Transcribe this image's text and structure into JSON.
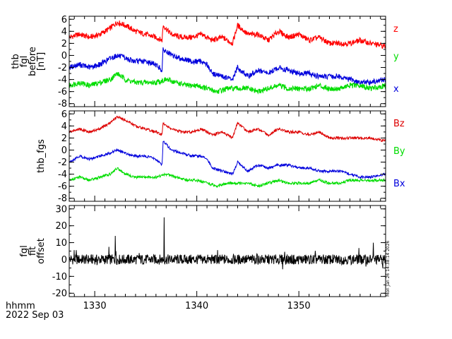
{
  "chart_data": [
    {
      "type": "line",
      "ylabel_lines": [
        "thb",
        "fgl",
        "before",
        "[nT]"
      ],
      "ylim": [
        -8.5,
        6.5
      ],
      "yticks": [
        -8,
        -6,
        -4,
        -2,
        0,
        2,
        4,
        6
      ],
      "xlim": [
        1327.5,
        1358.5
      ],
      "xticks": [
        1330,
        1340,
        1350
      ],
      "xtick_labels": [
        "1330",
        "1340",
        "1350"
      ],
      "legend_placement": "right",
      "series": [
        {
          "name": "z",
          "color": "#ff0000",
          "x": [
            1327.5,
            1328.5,
            1329.5,
            1330.5,
            1331.5,
            1332.2,
            1333,
            1334,
            1335,
            1336,
            1336.6,
            1336.7,
            1337.5,
            1338.5,
            1339.5,
            1340.5,
            1341.5,
            1342.5,
            1343.5,
            1344,
            1345,
            1346,
            1347,
            1348,
            1349,
            1350,
            1351,
            1352,
            1353,
            1354,
            1355,
            1356,
            1357,
            1358.5
          ],
          "values": [
            3.0,
            3.5,
            3.0,
            3.5,
            4.5,
            5.5,
            5.0,
            4.0,
            3.5,
            3.0,
            2.5,
            5.0,
            3.5,
            3.0,
            3.0,
            3.5,
            2.5,
            3.0,
            2.0,
            5.0,
            3.5,
            3.5,
            2.5,
            4.0,
            3.0,
            3.5,
            2.5,
            3.0,
            2.0,
            2.0,
            2.0,
            2.5,
            2.0,
            1.5
          ]
        },
        {
          "name": "y",
          "color": "#00dd00",
          "x": [
            1327.5,
            1328.5,
            1329.5,
            1330.5,
            1331.5,
            1332.2,
            1333,
            1334,
            1335,
            1336,
            1337,
            1338,
            1339,
            1340,
            1341,
            1342,
            1343,
            1344,
            1345,
            1346,
            1347,
            1348,
            1349,
            1350,
            1351,
            1352,
            1353,
            1354,
            1355,
            1356,
            1357,
            1358.5
          ],
          "values": [
            -5.0,
            -4.5,
            -5.0,
            -4.5,
            -4.0,
            -3.0,
            -4.0,
            -4.5,
            -4.5,
            -4.5,
            -4.0,
            -4.5,
            -5.0,
            -5.0,
            -5.5,
            -6.0,
            -5.5,
            -5.5,
            -5.5,
            -6.0,
            -5.5,
            -5.0,
            -5.5,
            -5.5,
            -5.5,
            -5.0,
            -5.5,
            -5.5,
            -5.0,
            -5.0,
            -5.5,
            -5.0
          ]
        },
        {
          "name": "x",
          "color": "#0000dd",
          "x": [
            1327.5,
            1328.5,
            1329.5,
            1330.5,
            1331.5,
            1332.2,
            1333,
            1334,
            1335,
            1336,
            1336.6,
            1336.7,
            1337.5,
            1338.5,
            1339.5,
            1340.5,
            1341,
            1341.5,
            1342.5,
            1343.5,
            1344,
            1345,
            1346,
            1347,
            1348,
            1349,
            1350,
            1351,
            1352,
            1353,
            1354,
            1355,
            1356,
            1357,
            1358.5
          ],
          "values": [
            -2.0,
            -1.5,
            -2.0,
            -1.5,
            -0.5,
            0.0,
            -0.5,
            -1.0,
            -1.0,
            -1.5,
            -2.5,
            1.0,
            0.0,
            -0.5,
            -1.0,
            -1.0,
            -1.5,
            -3.0,
            -3.5,
            -4.0,
            -2.0,
            -3.5,
            -2.5,
            -3.0,
            -2.0,
            -2.5,
            -3.0,
            -3.0,
            -3.5,
            -3.5,
            -3.5,
            -4.0,
            -4.5,
            -4.5,
            -4.0
          ]
        }
      ]
    },
    {
      "type": "line",
      "ylabel_lines": [
        "thb_fgs"
      ],
      "ylim": [
        -8.5,
        6.5
      ],
      "yticks": [
        -8,
        -6,
        -4,
        -2,
        0,
        2,
        4,
        6
      ],
      "xlim": [
        1327.5,
        1358.5
      ],
      "xticks": [
        1330,
        1340,
        1350
      ],
      "xtick_labels": [
        "1330",
        "1340",
        "1350"
      ],
      "legend_placement": "right",
      "series": [
        {
          "name": "Bz",
          "color": "#dd0000",
          "x": [
            1327.5,
            1328.5,
            1329.5,
            1330.5,
            1331.5,
            1332.2,
            1333,
            1334,
            1335,
            1336,
            1336.6,
            1336.7,
            1337.5,
            1338.5,
            1339.5,
            1340.5,
            1341.5,
            1342.5,
            1343.5,
            1344,
            1345,
            1346,
            1347,
            1348,
            1349,
            1350,
            1351,
            1352,
            1353,
            1354,
            1355,
            1356,
            1357,
            1358.5
          ],
          "values": [
            3.0,
            3.5,
            3.0,
            3.5,
            4.5,
            5.5,
            5.0,
            4.0,
            3.5,
            3.0,
            2.5,
            4.5,
            3.5,
            3.0,
            3.0,
            3.5,
            2.5,
            3.0,
            2.0,
            4.5,
            3.0,
            3.5,
            2.5,
            3.5,
            3.0,
            3.0,
            2.5,
            3.0,
            2.0,
            2.0,
            2.0,
            2.0,
            2.0,
            1.5
          ]
        },
        {
          "name": "By",
          "color": "#00dd00",
          "x": [
            1327.5,
            1328.5,
            1329.5,
            1330.5,
            1331.5,
            1332.2,
            1333,
            1334,
            1335,
            1336,
            1337,
            1338,
            1339,
            1340,
            1341,
            1342,
            1343,
            1344,
            1345,
            1346,
            1347,
            1348,
            1349,
            1350,
            1351,
            1352,
            1353,
            1354,
            1355,
            1356,
            1357,
            1358.5
          ],
          "values": [
            -5.0,
            -4.5,
            -5.0,
            -4.5,
            -4.0,
            -3.0,
            -4.0,
            -4.5,
            -4.5,
            -4.5,
            -4.0,
            -4.5,
            -5.0,
            -5.0,
            -5.5,
            -6.0,
            -5.5,
            -5.5,
            -5.5,
            -6.0,
            -5.5,
            -5.0,
            -5.5,
            -5.5,
            -5.5,
            -5.0,
            -5.5,
            -5.5,
            -5.0,
            -5.0,
            -5.0,
            -5.0
          ]
        },
        {
          "name": "Bx",
          "color": "#0000dd",
          "x": [
            1327.5,
            1328.5,
            1329.5,
            1330.5,
            1331.5,
            1332.2,
            1333,
            1334,
            1335,
            1336,
            1336.6,
            1336.7,
            1337.5,
            1338.5,
            1339.5,
            1340.5,
            1341,
            1341.5,
            1342.5,
            1343.5,
            1344,
            1345,
            1346,
            1347,
            1348,
            1349,
            1350,
            1351,
            1352,
            1353,
            1354,
            1355,
            1356,
            1357,
            1358.5
          ],
          "values": [
            -2.0,
            -1.0,
            -1.5,
            -1.0,
            -0.5,
            0.0,
            -0.5,
            -1.0,
            -1.0,
            -1.5,
            -2.5,
            1.5,
            0.0,
            -0.5,
            -1.0,
            -1.0,
            -1.5,
            -3.0,
            -3.5,
            -4.0,
            -2.0,
            -3.5,
            -2.5,
            -3.0,
            -2.5,
            -2.5,
            -3.0,
            -3.0,
            -3.5,
            -3.5,
            -3.5,
            -4.0,
            -4.5,
            -4.5,
            -4.0
          ]
        }
      ]
    },
    {
      "type": "line",
      "ylabel_lines": [
        "fgl",
        "fit",
        "offset"
      ],
      "ylim": [
        -22,
        32
      ],
      "yticks": [
        -20,
        -10,
        0,
        10,
        20,
        30
      ],
      "xlim": [
        1327.5,
        1358.5
      ],
      "xticks": [
        1330,
        1340,
        1350
      ],
      "xtick_labels": [
        "1330",
        "1340",
        "1350"
      ],
      "legend_placement": "none",
      "series": [
        {
          "color": "#000000",
          "x": [
            1327.5,
            1328.3,
            1329,
            1330,
            1331,
            1331.7,
            1332,
            1332.5,
            1333.5,
            1334.5,
            1335.5,
            1336.5,
            1336.8,
            1337,
            1337.5,
            1338.5,
            1339.5,
            1340.5,
            1341.5,
            1342.5,
            1343.5,
            1344.5,
            1345.5,
            1346.5,
            1347.5,
            1348.5,
            1349.5,
            1350.5,
            1351.5,
            1352.5,
            1353.5,
            1354.5,
            1355.5,
            1356.5,
            1357.3,
            1358.5
          ],
          "values": [
            1.0,
            -4.0,
            3.0,
            -3.0,
            4.0,
            -5.0,
            14.0,
            -4.0,
            2.0,
            -3.0,
            4.0,
            -4.0,
            25.0,
            3.0,
            -3.0,
            4.0,
            -4.0,
            3.0,
            -3.0,
            5.0,
            -4.0,
            3.0,
            -3.0,
            4.0,
            -4.0,
            3.0,
            -3.0,
            4.0,
            -4.0,
            3.0,
            -3.0,
            4.0,
            -4.0,
            3.0,
            10.0,
            -2.0
          ]
        }
      ]
    }
  ],
  "footer": {
    "xunit_label": "hhmm",
    "date_label": "2022 Sep 03",
    "timestamp": "Mon Jan 26 14:38:14 2026"
  }
}
